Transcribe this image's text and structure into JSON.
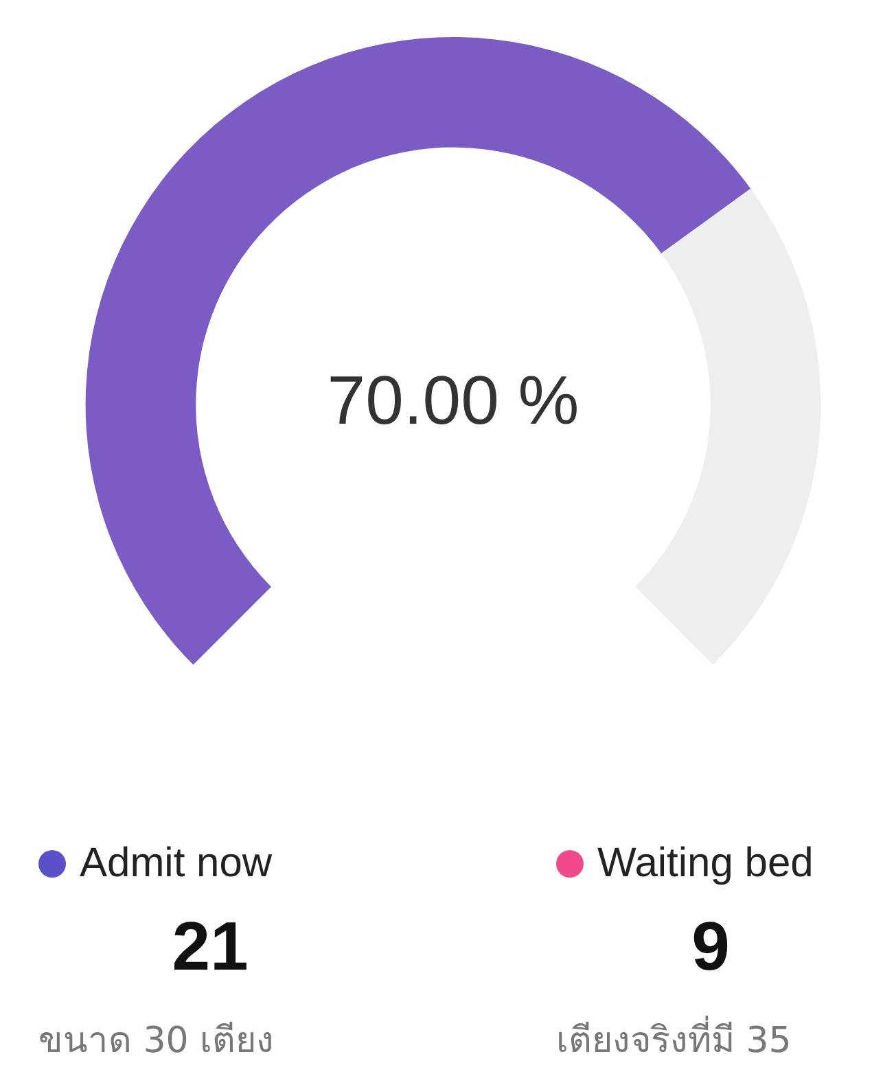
{
  "chart_data": {
    "type": "donut",
    "categories": [
      null,
      null
    ],
    "values": [
      70,
      30
    ],
    "colors": [
      "#7b5cc4",
      "#eeeeee"
    ],
    "legend": false,
    "annotations": [
      "70.00 %",
      "Admit now",
      "21",
      "ขนาด 30 เตียง",
      "Waiting bed",
      "9",
      "เตียงจริงที่มี 35"
    ]
  }
}
